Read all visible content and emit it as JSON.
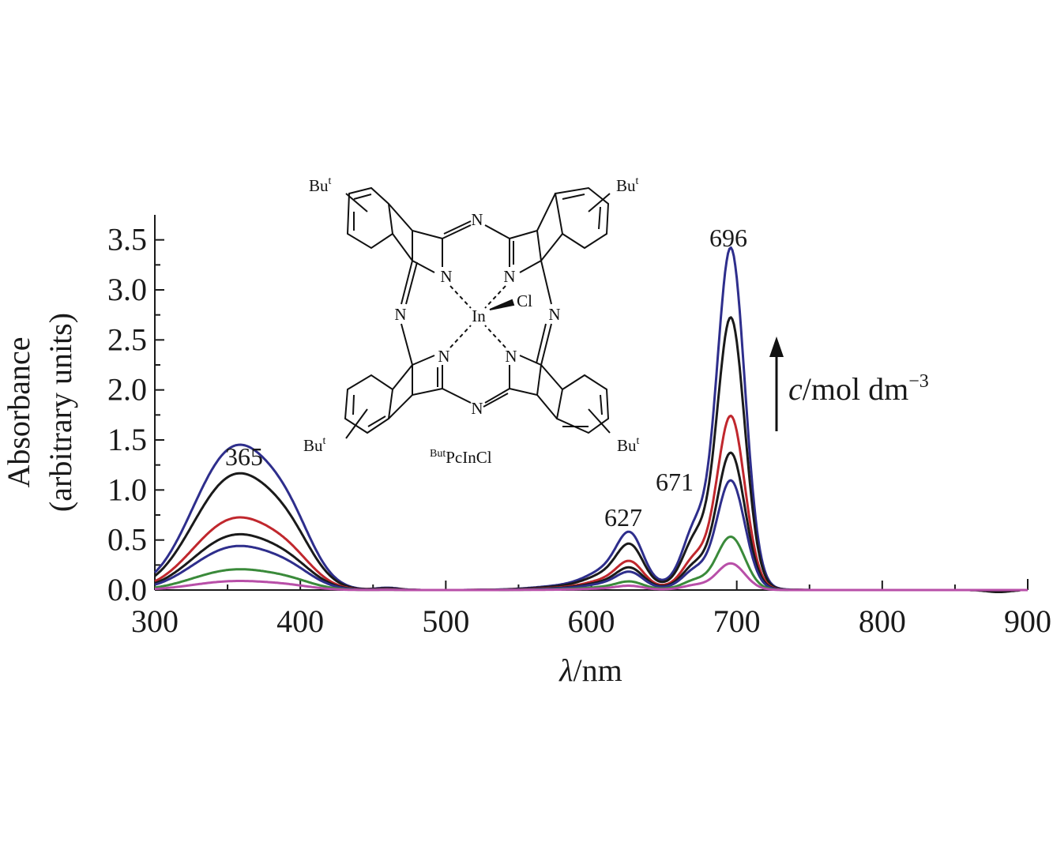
{
  "chart_data": {
    "type": "line",
    "xlabel_symbol": "λ",
    "xlabel_unit": "/nm",
    "ylabel_line1": "Absorbance",
    "ylabel_line2": "(arbitrary units)",
    "xlim": [
      300,
      900
    ],
    "ylim": [
      0,
      3.75
    ],
    "x_ticks": [
      "300",
      "400",
      "500",
      "600",
      "700",
      "800",
      "900"
    ],
    "y_ticks": [
      "0.0",
      "0.5",
      "1.0",
      "1.5",
      "2.0",
      "2.5",
      "3.0",
      "3.5"
    ],
    "peak_labels": [
      "365",
      "627",
      "671",
      "696"
    ],
    "concentration_label_italic": "c",
    "concentration_label_rest": "/mol dm",
    "concentration_label_sup": "−3",
    "compound_label_sup": "Bu",
    "compound_label_sup_t": "t",
    "compound_label_main": "PcInCl",
    "molecule": {
      "center_metal": "In",
      "axial_ligand": "Cl",
      "nitrogen": "N",
      "substituent": "Bu",
      "substituent_sup": "t"
    },
    "series": [
      {
        "color": "#2e2e8c",
        "values": {
          "b365": 1.12,
          "q627": 0.54,
          "s671": 0.78,
          "p696": 3.34
        }
      },
      {
        "color": "#1a1a1a",
        "values": {
          "b365": 0.9,
          "q627": 0.43,
          "s671": 0.64,
          "p696": 2.66
        }
      },
      {
        "color": "#c0272d",
        "values": {
          "b365": 0.56,
          "q627": 0.27,
          "s671": 0.4,
          "p696": 1.7
        }
      },
      {
        "color": "#1a1a1a",
        "values": {
          "b365": 0.43,
          "q627": 0.21,
          "s671": 0.31,
          "p696": 1.34
        }
      },
      {
        "color": "#2e2e8c",
        "values": {
          "b365": 0.34,
          "q627": 0.17,
          "s671": 0.25,
          "p696": 1.07
        }
      },
      {
        "color": "#3a8a3a",
        "values": {
          "b365": 0.16,
          "q627": 0.08,
          "s671": 0.12,
          "p696": 0.52
        }
      },
      {
        "color": "#b84fa8",
        "values": {
          "b365": 0.07,
          "q627": 0.04,
          "s671": 0.06,
          "p696": 0.26
        }
      }
    ]
  }
}
